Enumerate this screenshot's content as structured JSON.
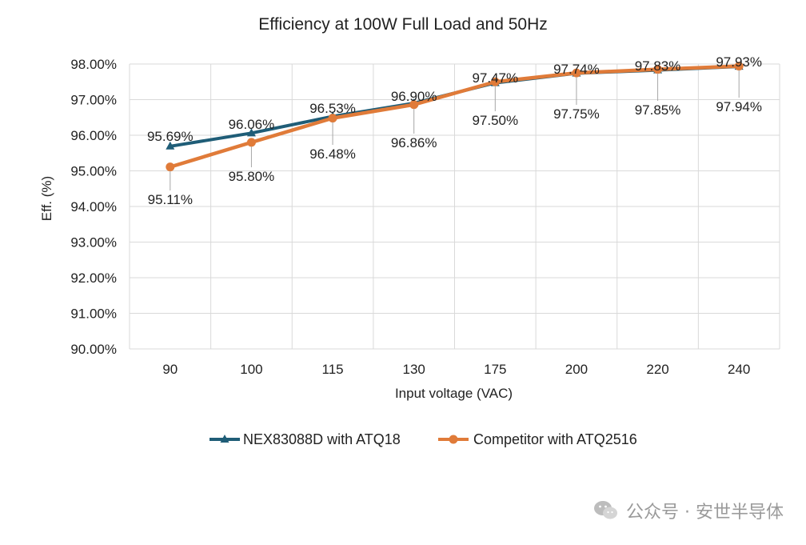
{
  "chart_data": {
    "type": "line",
    "title": "Efficiency at 100W Full Load and 50Hz",
    "xlabel": "Input voltage (VAC)",
    "ylabel": "Eff. (%)",
    "categories": [
      "90",
      "100",
      "115",
      "130",
      "175",
      "200",
      "220",
      "240"
    ],
    "ylim": [
      90,
      98
    ],
    "ytick_step": 1,
    "ytick_labels": [
      "90.00%",
      "91.00%",
      "92.00%",
      "93.00%",
      "94.00%",
      "95.00%",
      "96.00%",
      "97.00%",
      "98.00%"
    ],
    "grid": true,
    "legend_position": "bottom",
    "series": [
      {
        "name": "NEX83088D with ATQ18",
        "marker": "triangle",
        "color": "#1f5d77",
        "values": [
          95.69,
          96.06,
          96.53,
          96.9,
          97.47,
          97.74,
          97.83,
          97.93
        ],
        "labels": [
          "95.69%",
          "96.06%",
          "96.53%",
          "96.90%",
          "97.47%",
          "97.74%",
          "97.83%",
          "97.93%"
        ]
      },
      {
        "name": "Competitor with ATQ2516",
        "marker": "circle",
        "color": "#e07b39",
        "values": [
          95.11,
          95.8,
          96.48,
          96.86,
          97.5,
          97.75,
          97.85,
          97.94
        ],
        "labels": [
          "95.11%",
          "95.80%",
          "96.48%",
          "96.86%",
          "97.50%",
          "97.75%",
          "97.85%",
          "97.94%"
        ]
      }
    ]
  },
  "watermark": {
    "text": "公众号 · 安世半导体",
    "icon": "wechat-icon"
  }
}
